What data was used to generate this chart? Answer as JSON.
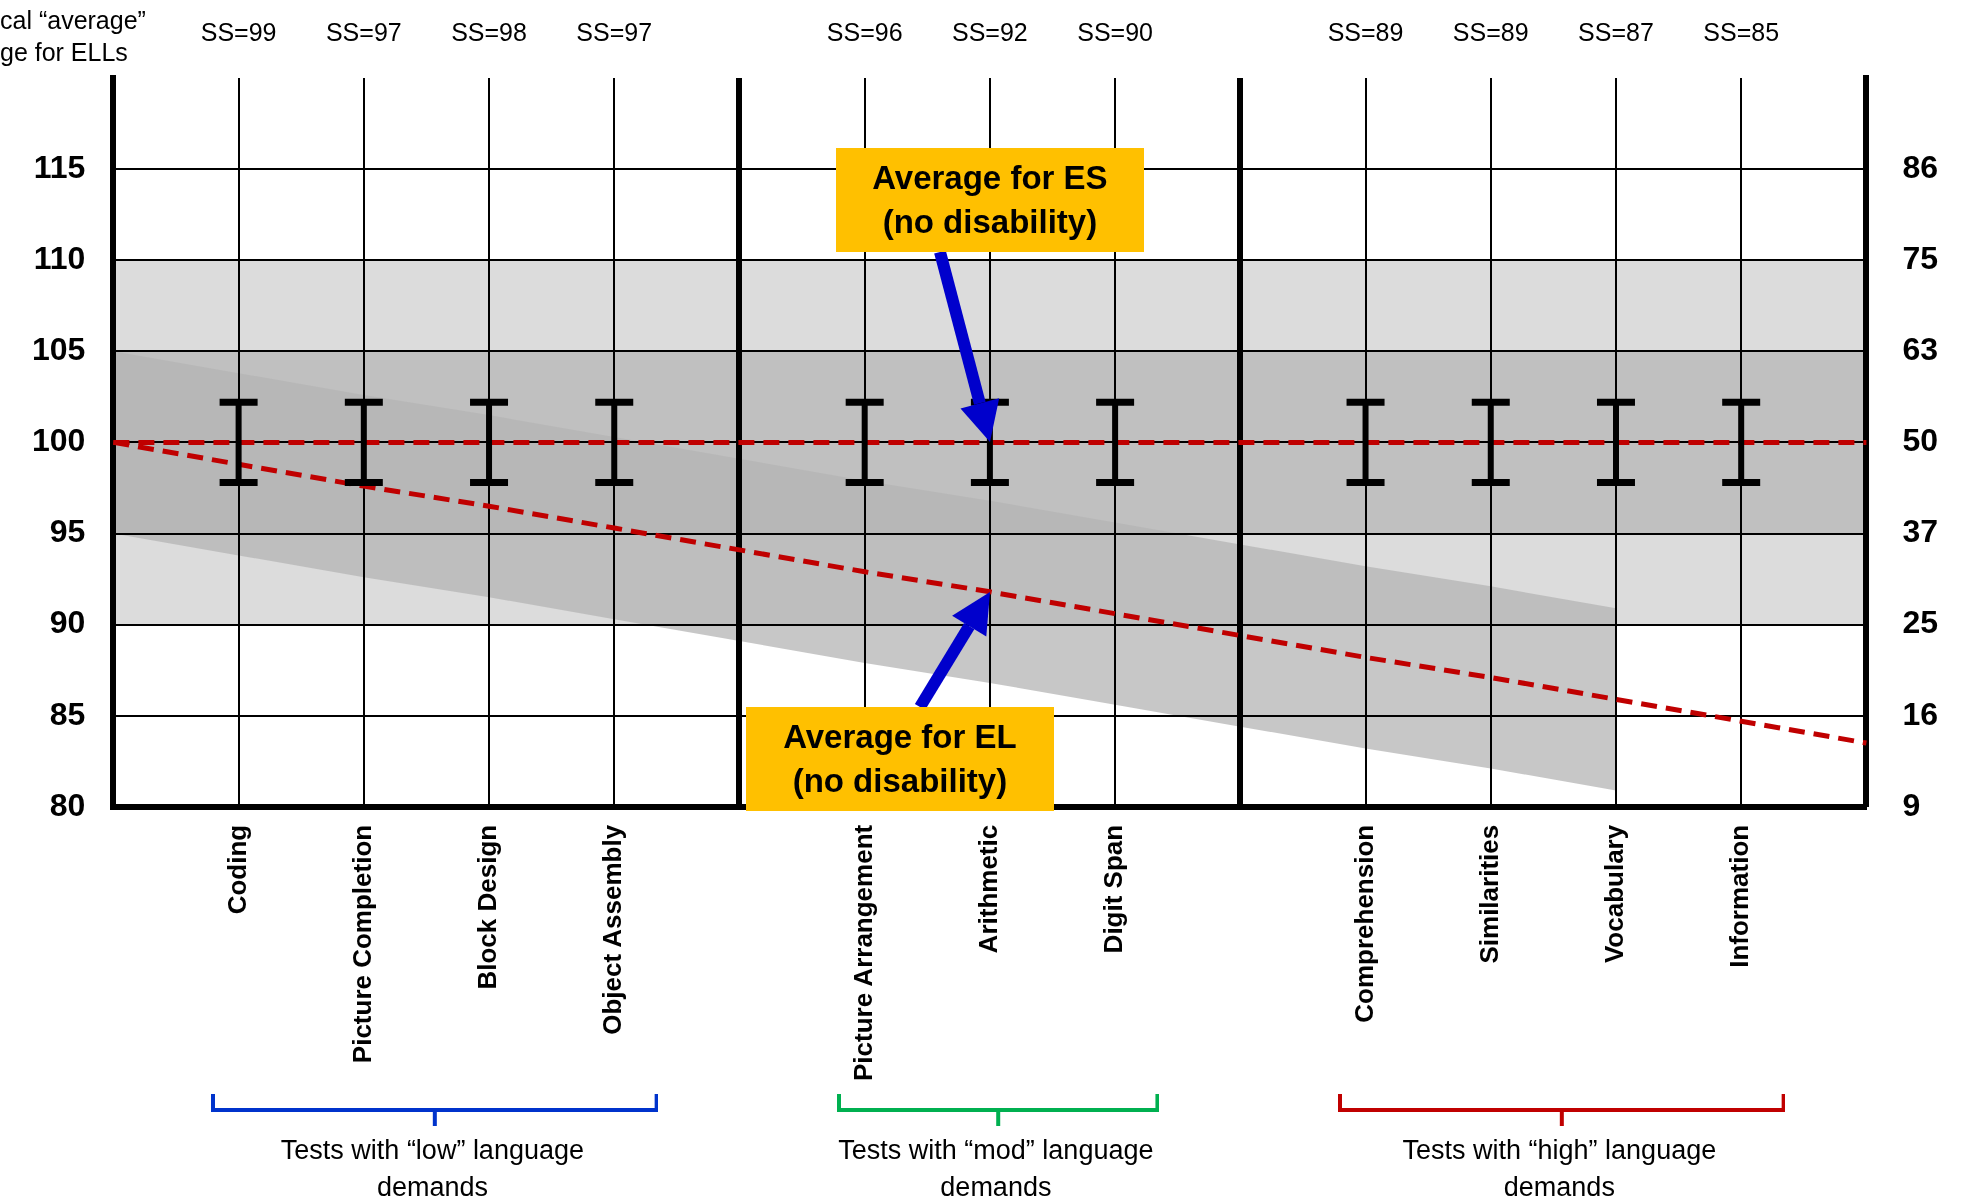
{
  "chart_data": {
    "type": "line",
    "categories": [
      null,
      "Coding",
      "Picture Completion",
      "Block Design",
      "Object Assembly",
      null,
      "Picture Arrangement",
      "Arithmetic",
      "Digit Span",
      null,
      "Comprehension",
      "Similarities",
      "Vocabulary",
      "Information",
      null
    ],
    "series": [
      {
        "color": "#c00000",
        "values": [
          100,
          100,
          100,
          100,
          100,
          100,
          100,
          100,
          100,
          100,
          100,
          100,
          100,
          100,
          100
        ],
        "errors": [
          null,
          2.2,
          2.2,
          2.2,
          2.2,
          null,
          2.2,
          2.2,
          2.2,
          null,
          2.2,
          2.2,
          2.2,
          2.2,
          null
        ]
      },
      {
        "color": "#c00000",
        "values": [
          100,
          98.8,
          97.6,
          96.5,
          95.3,
          94.1,
          92.9,
          91.8,
          90.6,
          89.4,
          88.2,
          87.1,
          85.9,
          84.7,
          83.5
        ],
        "upper": [
          105,
          103.8,
          102.6,
          101.5,
          100.3,
          99.1,
          97.9,
          96.8,
          95.6,
          94.4,
          93.2,
          92.1,
          90.9,
          null,
          null
        ],
        "lower": [
          95,
          93.8,
          92.6,
          91.5,
          90.3,
          89.1,
          87.9,
          86.8,
          85.6,
          84.4,
          83.2,
          82.1,
          80.9,
          null,
          null
        ]
      }
    ],
    "ylim": [
      80,
      120
    ],
    "yticks": [
      80,
      85,
      90,
      95,
      100,
      105,
      110,
      115
    ],
    "y2_categories": [
      null,
      "86",
      "75",
      "63",
      "50",
      "37",
      "25",
      "16",
      "9"
    ],
    "bands": [
      {
        "axis": "y",
        "from": 90,
        "to": 110,
        "color": "#dcdcdc"
      },
      {
        "axis": "y",
        "from": 95,
        "to": 105,
        "color": "#c0c0c0"
      }
    ],
    "grid": true,
    "line_style": "dashed",
    "marker": "none",
    "annotations": [
      "cal “average”\nge for ELLs",
      "Tests with “low” language demands",
      "Tests with “mod” language demands",
      "Tests with “high” language demands",
      "SS=99",
      "SS=97",
      "SS=98",
      "SS=97",
      "SS=96",
      "SS=92",
      "SS=90",
      "SS=89",
      "SS=89",
      "SS=87",
      "SS=85",
      "Average for ES (no disability)",
      "Average for EL (no disability)"
    ]
  }
}
